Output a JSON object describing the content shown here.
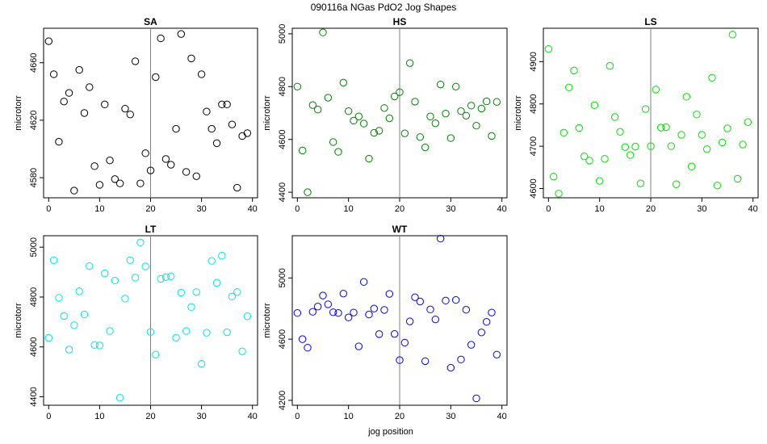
{
  "figure": {
    "title": "090116a   NGas PdO2 Jog Shapes",
    "xlabel": "jog position"
  },
  "chart_data": [
    {
      "type": "scatter",
      "title": "SA",
      "ylabel": "microtorr",
      "color": "#000000",
      "xlim": [
        -1,
        41
      ],
      "ylim": [
        4566,
        4684
      ],
      "xticks": [
        0,
        10,
        20,
        30,
        40
      ],
      "yticks": [
        4580,
        4620,
        4660
      ],
      "vline": 20,
      "y": [
        4675,
        4652,
        4605,
        4633,
        4639,
        4571,
        4655,
        4625,
        4643,
        4588,
        4575,
        4631,
        4592,
        4579,
        4576,
        4628,
        4624,
        4661,
        4576,
        4597,
        4585,
        4650,
        4677,
        4593,
        4589,
        4614,
        4680,
        4584,
        4663,
        4581,
        4652,
        4626,
        4614,
        4604,
        4631,
        4631,
        4617,
        4573,
        4609,
        4611
      ]
    },
    {
      "type": "scatter",
      "title": "HS",
      "ylabel": "microtorr",
      "color": "#008000",
      "xlim": [
        -1,
        41
      ],
      "ylim": [
        4379,
        5021
      ],
      "xticks": [
        0,
        10,
        20,
        30,
        40
      ],
      "yticks": [
        4400,
        4600,
        4800,
        5000
      ],
      "vline": 20,
      "y": [
        4800,
        4558,
        4400,
        4730,
        4713,
        5005,
        4758,
        4590,
        4553,
        4815,
        4707,
        4671,
        4687,
        4660,
        4527,
        4625,
        4633,
        4719,
        4680,
        4763,
        4779,
        4623,
        4889,
        4743,
        4609,
        4570,
        4687,
        4661,
        4808,
        4698,
        4605,
        4800,
        4707,
        4690,
        4728,
        4652,
        4717,
        4744,
        4613,
        4742
      ]
    },
    {
      "type": "scatter",
      "title": "LS",
      "ylabel": "microtorr",
      "color": "#00e000",
      "xlim": [
        -1,
        41
      ],
      "ylim": [
        4578,
        4979
      ],
      "xticks": [
        0,
        10,
        20,
        30,
        40
      ],
      "yticks": [
        4600,
        4700,
        4800,
        4900
      ],
      "vline": 20,
      "y": [
        4930,
        4628,
        4588,
        4732,
        4839,
        4879,
        4743,
        4676,
        4666,
        4797,
        4618,
        4670,
        4890,
        4769,
        4734,
        4698,
        4679,
        4699,
        4612,
        4788,
        4700,
        4834,
        4744,
        4745,
        4700,
        4610,
        4727,
        4817,
        4652,
        4775,
        4727,
        4693,
        4862,
        4607,
        4709,
        4742,
        4964,
        4623,
        4704,
        4757
      ]
    },
    {
      "type": "scatter",
      "title": "LT",
      "ylabel": "microtorr",
      "color": "#00e5e5",
      "xlim": [
        -1,
        41
      ],
      "ylim": [
        4366,
        5046
      ],
      "xticks": [
        0,
        10,
        20,
        30,
        40
      ],
      "yticks": [
        4400,
        4600,
        4800,
        5000
      ],
      "vline": 20,
      "y": [
        4636,
        4948,
        4797,
        4724,
        4589,
        4687,
        4823,
        4730,
        4924,
        4608,
        4606,
        4895,
        4664,
        4866,
        4396,
        4794,
        4948,
        4878,
        5019,
        4923,
        4660,
        4569,
        4873,
        4880,
        4883,
        4637,
        4818,
        4664,
        4760,
        4820,
        4532,
        4657,
        4945,
        4857,
        4966,
        4659,
        4802,
        4820,
        4582,
        4723
      ]
    },
    {
      "type": "scatter",
      "title": "WT",
      "ylabel": "microtorr",
      "color": "#0000ff",
      "xlim": [
        -1,
        41
      ],
      "ylim": [
        4168,
        5276
      ],
      "xticks": [
        0,
        10,
        20,
        30,
        40
      ],
      "yticks": [
        4200,
        4600,
        5000
      ],
      "vline": 20,
      "y": [
        4771,
        4600,
        4544,
        4779,
        4813,
        4885,
        4828,
        4776,
        4771,
        4898,
        4742,
        4774,
        4553,
        4974,
        4761,
        4800,
        4633,
        4791,
        4896,
        4634,
        4463,
        4577,
        4716,
        4874,
        4846,
        4456,
        4794,
        4729,
        5257,
        4852,
        4413,
        4856,
        4467,
        4792,
        4563,
        4213,
        4644,
        4713,
        4774,
        4499
      ]
    }
  ]
}
